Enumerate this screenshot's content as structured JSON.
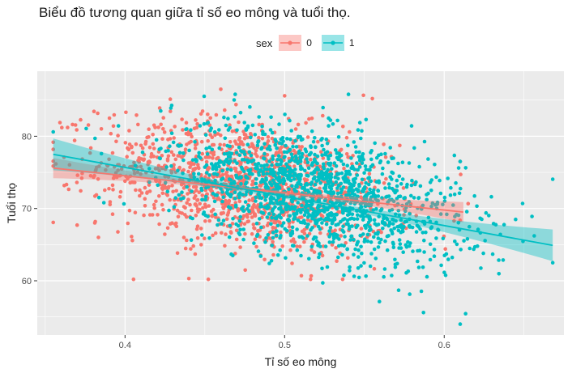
{
  "chart_data": {
    "type": "scatter",
    "title": "Biểu đồ tương quan giữa tỉ số eo mông và tuổi thọ.",
    "xlabel": "Tỉ số eo mông",
    "ylabel": "Tuổi thọ",
    "xlim": [
      0.345,
      0.675
    ],
    "ylim": [
      52.5,
      89.0
    ],
    "x_ticks": [
      0.4,
      0.5,
      0.6
    ],
    "y_ticks": [
      60,
      70,
      80
    ],
    "x_tick_labels": [
      "0.4",
      "0.5",
      "0.6"
    ],
    "y_tick_labels": [
      "60",
      "70",
      "80"
    ],
    "grid": true,
    "legend": {
      "title": "sex",
      "position": "top"
    },
    "series": [
      {
        "name": "0",
        "color": "#F8766D",
        "point_cloud": {
          "n": 1300,
          "x_mean": 0.475,
          "x_sd": 0.045,
          "x_range": [
            0.355,
            0.615
          ],
          "y_intercept": 88.5,
          "y_slope": -32.0,
          "y_sd": 4.3,
          "y_range": [
            60.2,
            86.5
          ]
        },
        "outliers": [
          [
            0.37,
            67.7
          ],
          [
            0.44,
            60.3
          ],
          [
            0.46,
            86.5
          ],
          [
            0.5,
            85.6
          ],
          [
            0.555,
            85.2
          ],
          [
            0.61,
            76.5
          ]
        ],
        "trend": {
          "x": [
            0.355,
            0.612
          ],
          "y": [
            75.6,
            69.5
          ]
        },
        "ci_halfwidth": {
          "ends": 1.4,
          "center": 0.25
        }
      },
      {
        "name": "1",
        "color": "#00BFC4",
        "point_cloud": {
          "n": 1500,
          "x_mean": 0.52,
          "x_sd": 0.045,
          "x_range": [
            0.355,
            0.668
          ],
          "y_intercept": 97.3,
          "y_slope": -48.5,
          "y_sd": 4.2,
          "y_range": [
            54.0,
            85.8
          ]
        },
        "outliers": [
          [
            0.355,
            80.6
          ],
          [
            0.54,
            85.8
          ],
          [
            0.587,
            55.6
          ],
          [
            0.61,
            54.0
          ],
          [
            0.655,
            68.9
          ],
          [
            0.668,
            62.5
          ],
          [
            0.61,
            76.5
          ]
        ],
        "trend": {
          "x": [
            0.355,
            0.668
          ],
          "y": [
            77.5,
            64.9
          ]
        },
        "ci_halfwidth": {
          "ends": 2.2,
          "center": 0.3
        }
      }
    ]
  }
}
